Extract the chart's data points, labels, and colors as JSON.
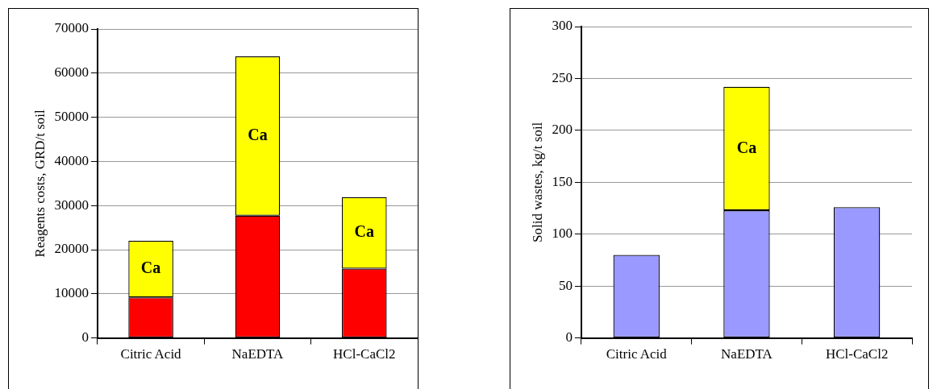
{
  "chart_data": [
    {
      "type": "bar",
      "stacked": true,
      "ylabel": "Reagents costs, GRD/t soil",
      "categories": [
        "Citric Acid",
        "NaEDTA",
        "HCl-CaCl2"
      ],
      "series": [
        {
          "color": "#ff0000",
          "values": [
            9200,
            27700,
            15700
          ]
        },
        {
          "name": "Ca",
          "color": "#ffff00",
          "values": [
            12800,
            36100,
            16200
          ]
        }
      ],
      "ylim": [
        0,
        70000
      ],
      "yticks": [
        0,
        10000,
        20000,
        30000,
        40000,
        50000,
        60000,
        70000
      ],
      "grid": "y",
      "legend": false
    },
    {
      "type": "bar",
      "stacked": true,
      "ylabel": "Solid wastes, kg/t soil",
      "categories": [
        "Citric Acid",
        "NaEDTA",
        "HCl-CaCl2"
      ],
      "series": [
        {
          "color": "#9999ff",
          "values": [
            80,
            123,
            126
          ]
        },
        {
          "name": "Ca",
          "color": "#ffff00",
          "values": [
            null,
            119,
            null
          ]
        }
      ],
      "ylim": [
        0,
        300
      ],
      "yticks": [
        0,
        50,
        100,
        150,
        200,
        250,
        300
      ],
      "grid": "y",
      "legend": false
    }
  ]
}
